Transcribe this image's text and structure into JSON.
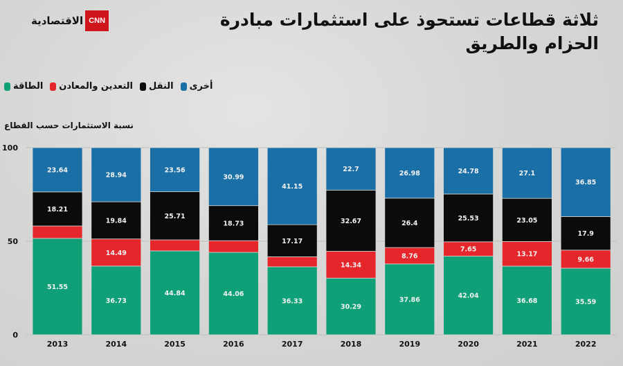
{
  "header": {
    "title": "ثلاثة قطاعات تستحوذ على استثمارات مبادرة الحزام والطريق",
    "logo_cnn": "CNN",
    "logo_brand": "الاقتصادية"
  },
  "chart_data": {
    "type": "bar",
    "stacked": true,
    "title": "ثلاثة قطاعات تستحوذ على استثمارات مبادرة الحزام والطريق",
    "ylabel": "نسبة الاستثمارات حسب القطاع",
    "xlabel": "",
    "ylim": [
      0,
      100
    ],
    "yticks": [
      "0",
      "50",
      "100"
    ],
    "legend_position": "top-left",
    "categories": [
      "2013",
      "2014",
      "2015",
      "2016",
      "2017",
      "2018",
      "2019",
      "2020",
      "2021",
      "2022"
    ],
    "series": [
      {
        "name": "الطاقة",
        "color": "#0fa078",
        "values": [
          51.55,
          36.73,
          44.84,
          44.06,
          36.33,
          30.29,
          37.86,
          42.04,
          36.68,
          35.59
        ],
        "labels": [
          "51.55",
          "36.73",
          "44.84",
          "44.06",
          "36.33",
          "30.29",
          "37.86",
          "42.04",
          "36.68",
          "35.59"
        ]
      },
      {
        "name": "التعدين والمعادن",
        "color": "#e5262a",
        "values": [
          6.6,
          14.49,
          5.89,
          6.22,
          5.35,
          14.34,
          8.76,
          7.65,
          13.17,
          9.66
        ],
        "labels": [
          null,
          "14.49",
          null,
          null,
          null,
          "14.34",
          "8.76",
          "7.65",
          "13.17",
          "9.66"
        ]
      },
      {
        "name": "النقل",
        "color": "#0b0b0b",
        "values": [
          18.21,
          19.84,
          25.71,
          18.73,
          17.17,
          32.67,
          26.4,
          25.53,
          23.05,
          17.9
        ],
        "labels": [
          "18.21",
          "19.84",
          "25.71",
          "18.73",
          "17.17",
          "32.67",
          "26.4",
          "25.53",
          "23.05",
          "17.9"
        ]
      },
      {
        "name": "أخرى",
        "color": "#1a6fa6",
        "values": [
          23.64,
          28.94,
          23.56,
          30.99,
          41.15,
          22.7,
          26.98,
          24.78,
          27.1,
          36.85
        ],
        "labels": [
          "23.64",
          "28.94",
          "23.56",
          "30.99",
          "41.15",
          "22.7",
          "26.98",
          "24.78",
          "27.1",
          "36.85"
        ]
      }
    ]
  }
}
